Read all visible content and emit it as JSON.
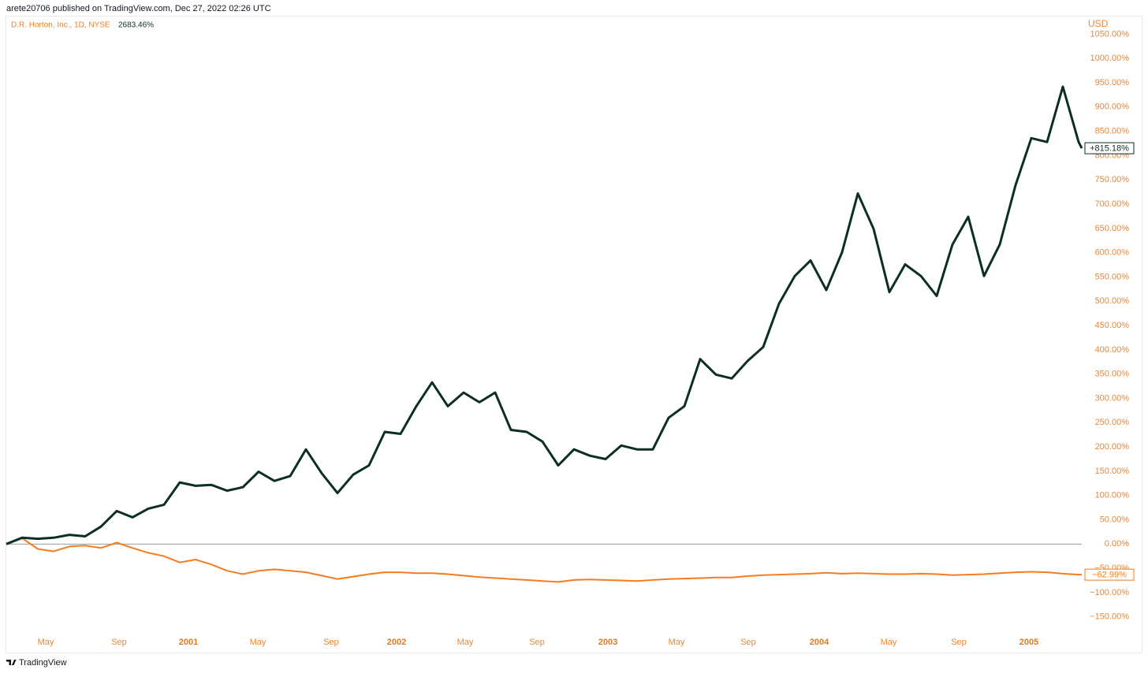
{
  "header": "arete20706 published on TradingView.com, Dec 27, 2022 02:26 UTC",
  "footer": "TradingView",
  "chart_data": {
    "type": "line",
    "currency": "USD",
    "legend_value": {
      "value": 2683.46,
      "label": "2683.46%"
    },
    "x": [
      0,
      1,
      2,
      3,
      4,
      5,
      6,
      7,
      8,
      9,
      10,
      11,
      12,
      13,
      14,
      15,
      16,
      17,
      18,
      19,
      20,
      21,
      22,
      23,
      24,
      25,
      26,
      27,
      28,
      29,
      30,
      31,
      32,
      33,
      34,
      35,
      36,
      37,
      38,
      39,
      40,
      41,
      42,
      43,
      44,
      45,
      46,
      47,
      48,
      49,
      50,
      51,
      52,
      53,
      54,
      55,
      56,
      57,
      58,
      59,
      60,
      61,
      62,
      63,
      64,
      65,
      66,
      67,
      68,
      68.2
    ],
    "xlim": [
      0,
      68.2
    ],
    "xticks": [
      {
        "value": 2.5,
        "label": "May"
      },
      {
        "value": 7.15,
        "label": "Sep"
      },
      {
        "value": 11.55,
        "label": "2001"
      },
      {
        "value": 15.95,
        "label": "May"
      },
      {
        "value": 20.6,
        "label": "Sep"
      },
      {
        "value": 24.75,
        "label": "2002"
      },
      {
        "value": 29.1,
        "label": "May"
      },
      {
        "value": 33.65,
        "label": "Sep"
      },
      {
        "value": 38.15,
        "label": "2003"
      },
      {
        "value": 42.5,
        "label": "May"
      },
      {
        "value": 47.05,
        "label": "Sep"
      },
      {
        "value": 51.55,
        "label": "2004"
      },
      {
        "value": 55.95,
        "label": "May"
      },
      {
        "value": 60.4,
        "label": "Sep"
      },
      {
        "value": 64.85,
        "label": "2005"
      }
    ],
    "ylim": [
      -178,
      1088
    ],
    "yticks": [
      {
        "value": 1050,
        "label": "1050.00%"
      },
      {
        "value": 1000,
        "label": "1000.00%"
      },
      {
        "value": 950,
        "label": "950.00%"
      },
      {
        "value": 900,
        "label": "900.00%"
      },
      {
        "value": 850,
        "label": "850.00%"
      },
      {
        "value": 800,
        "label": "800.00%"
      },
      {
        "value": 750,
        "label": "750.00%"
      },
      {
        "value": 700,
        "label": "700.00%"
      },
      {
        "value": 650,
        "label": "650.00%"
      },
      {
        "value": 600,
        "label": "600.00%"
      },
      {
        "value": 550,
        "label": "550.00%"
      },
      {
        "value": 500,
        "label": "500.00%"
      },
      {
        "value": 450,
        "label": "450.00%"
      },
      {
        "value": 400,
        "label": "400.00%"
      },
      {
        "value": 350,
        "label": "350.00%"
      },
      {
        "value": 300,
        "label": "300.00%"
      },
      {
        "value": 250,
        "label": "250.00%"
      },
      {
        "value": 200,
        "label": "200.00%"
      },
      {
        "value": 150,
        "label": "150.00%"
      },
      {
        "value": 100,
        "label": "100.00%"
      },
      {
        "value": 50,
        "label": "50.00%"
      },
      {
        "value": 0,
        "label": "0.00%"
      },
      {
        "value": -50,
        "label": "−50.00%"
      },
      {
        "value": -100,
        "label": "−100.00%"
      },
      {
        "value": -150,
        "label": "−150.00%"
      }
    ],
    "series": [
      {
        "name": "D.R. Horton, Inc., 1D, NYSE",
        "color": "#f57c1f",
        "last_value_label": "−62.99%",
        "values": [
          0,
          12,
          -10,
          -15,
          -5,
          -3,
          -8,
          3,
          -8,
          -18,
          -25,
          -38,
          -32,
          -42,
          -55,
          -62,
          -55,
          -52,
          -55,
          -58,
          -65,
          -72,
          -67,
          -62,
          -58,
          -58,
          -60,
          -60,
          -62,
          -65,
          -68,
          -70,
          -72,
          -74,
          -76,
          -78,
          -74,
          -73,
          -74,
          -75,
          -76,
          -74,
          -72,
          -71,
          -70,
          -69,
          -69,
          -66,
          -64,
          -63,
          -62,
          -61,
          -59,
          -61,
          -60,
          -61,
          -62,
          -62,
          -61,
          -62,
          -64,
          -63,
          -62,
          -60,
          -58,
          -57,
          -58,
          -61,
          -63,
          -62.99
        ]
      },
      {
        "color": "#0d2e25",
        "last_value_label": "+815.18%",
        "values": [
          0,
          13,
          11,
          13,
          19,
          16,
          36,
          68,
          55,
          73,
          81,
          127,
          120,
          122,
          110,
          117,
          149,
          130,
          140,
          195,
          146,
          105,
          143,
          162,
          231,
          227,
          284,
          333,
          284,
          312,
          292,
          312,
          235,
          231,
          211,
          162,
          195,
          182,
          175,
          203,
          195,
          195,
          260,
          284,
          381,
          349,
          341,
          377,
          406,
          495,
          552,
          584,
          523,
          601,
          722,
          649,
          519,
          576,
          552,
          511,
          617,
          674,
          552,
          617,
          739,
          836,
          828,
          942,
          828,
          815.18
        ]
      }
    ]
  }
}
